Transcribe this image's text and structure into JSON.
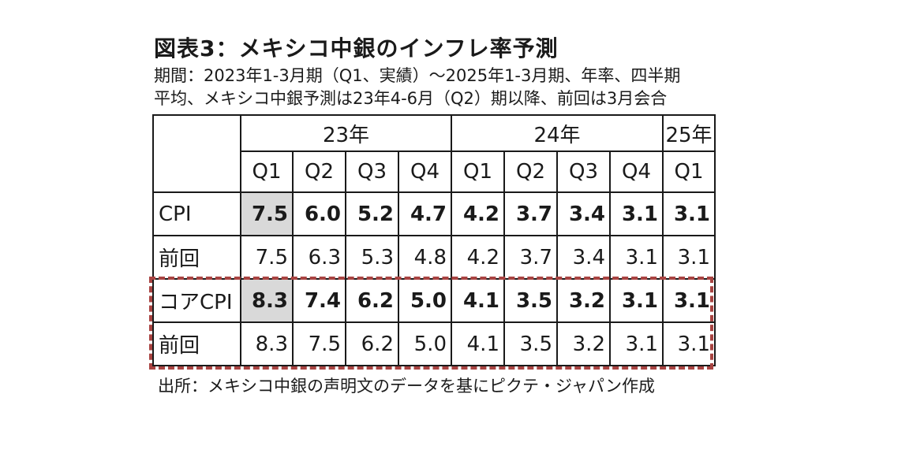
{
  "title": "図表3：メキシコ中銀のインフレ率予測",
  "subtitle_line1": "期間：2023年1-3月期（Q1、実績）～2025年1-3月期、年率、四半期",
  "subtitle_line2": "平均、メキシコ中銀予測は23年4-6月（Q2）期以降、前回は3月会合",
  "table": {
    "years": [
      {
        "label": "23年",
        "span": 4
      },
      {
        "label": "24年",
        "span": 4
      },
      {
        "label": "25年",
        "span": 1
      }
    ],
    "quarters": [
      "Q1",
      "Q2",
      "Q3",
      "Q4",
      "Q1",
      "Q2",
      "Q3",
      "Q4",
      "Q1"
    ],
    "rows": [
      {
        "label": "CPI",
        "values": [
          "7.5",
          "6.0",
          "5.2",
          "4.7",
          "4.2",
          "3.7",
          "3.4",
          "3.1",
          "3.1"
        ],
        "bold": true
      },
      {
        "label": "前回",
        "values": [
          "7.5",
          "6.3",
          "5.3",
          "4.8",
          "4.2",
          "3.7",
          "3.4",
          "3.1",
          "3.1"
        ],
        "bold": false
      },
      {
        "label": "コアCPI",
        "values": [
          "8.3",
          "7.4",
          "6.2",
          "5.0",
          "4.1",
          "3.5",
          "3.2",
          "3.1",
          "3.1"
        ],
        "bold": true
      },
      {
        "label": "前回",
        "values": [
          "8.3",
          "7.5",
          "6.2",
          "5.0",
          "4.1",
          "3.5",
          "3.2",
          "3.1",
          "3.1"
        ],
        "bold": false
      }
    ],
    "highlight_color": "#d9d9d9",
    "dash_color": "#a94442"
  },
  "source": "出所：メキシコ中銀の声明文のデータを基にピクテ・ジャパン作成"
}
